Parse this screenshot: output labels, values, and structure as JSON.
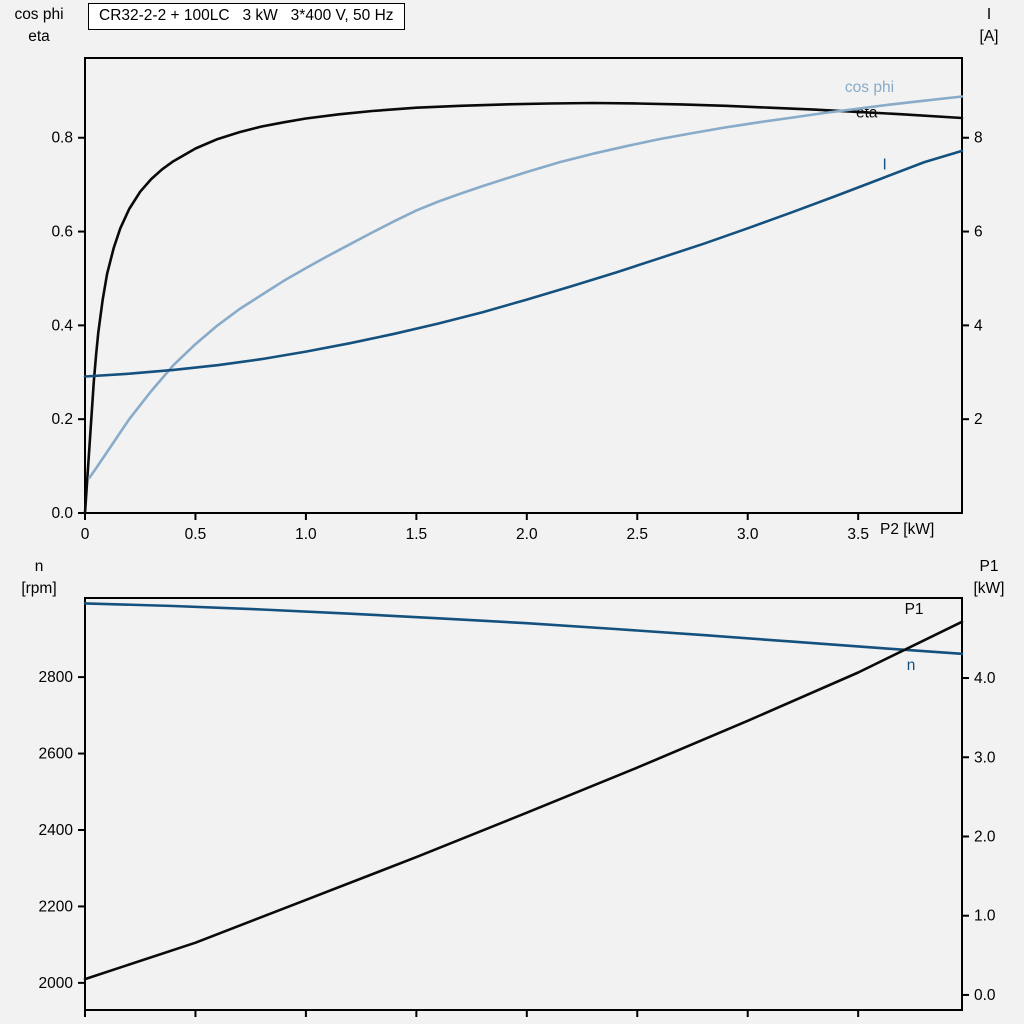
{
  "colors": {
    "black": "#0a0a0a",
    "dark_blue": "#15517e",
    "light_blue": "#88abc9",
    "frame": "#000000",
    "background": "#f2f2f2",
    "title_bg": "#ffffff"
  },
  "chart_data": [
    {
      "type": "line",
      "title": "CR32-2-2 + 100LC   3 kW   3*400 V, 50 Hz",
      "grid": false,
      "legend_position": "curve-labels-inside",
      "x_axis": {
        "label": "P2 [kW]",
        "range": [
          0,
          3.97
        ],
        "ticks": [
          0,
          0.5,
          1.0,
          1.5,
          2.0,
          2.5,
          3.0,
          3.5
        ],
        "tick_labels": [
          "0",
          "0.5",
          "1.0",
          "1.5",
          "2.0",
          "2.5",
          "3.0",
          "3.5"
        ]
      },
      "y_left": {
        "label_lines": [
          "cos phi",
          "eta"
        ],
        "range": [
          0,
          0.97
        ],
        "ticks": [
          0.0,
          0.2,
          0.4,
          0.6,
          0.8
        ],
        "tick_labels": [
          "0.0",
          "0.2",
          "0.4",
          "0.6",
          "0.8"
        ]
      },
      "y_right": {
        "label_lines": [
          "I",
          "[A]"
        ],
        "range": [
          0,
          9.7
        ],
        "ticks": [
          2,
          4,
          6,
          8
        ],
        "tick_labels": [
          "2",
          "4",
          "6",
          "8"
        ]
      },
      "series": [
        {
          "name": "eta",
          "axis": "left",
          "color": "#0a0a0a",
          "label": {
            "text": "eta",
            "x": 3.49,
            "y": 0.843
          },
          "points": [
            [
              0,
              0
            ],
            [
              0.01,
              0.07
            ],
            [
              0.02,
              0.14
            ],
            [
              0.03,
              0.21
            ],
            [
              0.04,
              0.28
            ],
            [
              0.05,
              0.335
            ],
            [
              0.06,
              0.385
            ],
            [
              0.08,
              0.455
            ],
            [
              0.1,
              0.51
            ],
            [
              0.13,
              0.565
            ],
            [
              0.16,
              0.607
            ],
            [
              0.2,
              0.648
            ],
            [
              0.25,
              0.685
            ],
            [
              0.3,
              0.712
            ],
            [
              0.35,
              0.733
            ],
            [
              0.4,
              0.75
            ],
            [
              0.5,
              0.777
            ],
            [
              0.6,
              0.797
            ],
            [
              0.7,
              0.812
            ],
            [
              0.8,
              0.824
            ],
            [
              0.9,
              0.833
            ],
            [
              1.0,
              0.841
            ],
            [
              1.15,
              0.85
            ],
            [
              1.3,
              0.857
            ],
            [
              1.5,
              0.864
            ],
            [
              1.7,
              0.868
            ],
            [
              1.9,
              0.871
            ],
            [
              2.1,
              0.873
            ],
            [
              2.3,
              0.874
            ],
            [
              2.5,
              0.873
            ],
            [
              2.7,
              0.871
            ],
            [
              2.9,
              0.868
            ],
            [
              3.1,
              0.864
            ],
            [
              3.3,
              0.86
            ],
            [
              3.5,
              0.855
            ],
            [
              3.7,
              0.85
            ],
            [
              3.97,
              0.842
            ]
          ]
        },
        {
          "name": "cos phi",
          "axis": "left",
          "color": "#88abc9",
          "label": {
            "text": "cos phi",
            "x": 3.44,
            "y": 0.897
          },
          "points": [
            [
              0.02,
              0.075
            ],
            [
              0.05,
              0.095
            ],
            [
              0.1,
              0.13
            ],
            [
              0.15,
              0.165
            ],
            [
              0.2,
              0.2
            ],
            [
              0.3,
              0.26
            ],
            [
              0.4,
              0.315
            ],
            [
              0.5,
              0.36
            ],
            [
              0.6,
              0.4
            ],
            [
              0.7,
              0.435
            ],
            [
              0.8,
              0.465
            ],
            [
              0.9,
              0.495
            ],
            [
              1.0,
              0.522
            ],
            [
              1.1,
              0.548
            ],
            [
              1.2,
              0.573
            ],
            [
              1.3,
              0.598
            ],
            [
              1.4,
              0.622
            ],
            [
              1.5,
              0.645
            ],
            [
              1.6,
              0.664
            ],
            [
              1.7,
              0.681
            ],
            [
              1.8,
              0.697
            ],
            [
              1.9,
              0.712
            ],
            [
              2.0,
              0.727
            ],
            [
              2.15,
              0.748
            ],
            [
              2.3,
              0.766
            ],
            [
              2.45,
              0.782
            ],
            [
              2.6,
              0.797
            ],
            [
              2.75,
              0.81
            ],
            [
              2.9,
              0.822
            ],
            [
              3.05,
              0.833
            ],
            [
              3.2,
              0.843
            ],
            [
              3.35,
              0.853
            ],
            [
              3.5,
              0.862
            ],
            [
              3.65,
              0.871
            ],
            [
              3.8,
              0.879
            ],
            [
              3.97,
              0.888
            ]
          ]
        },
        {
          "name": "I",
          "axis": "right",
          "color": "#15517e",
          "label": {
            "text": "I",
            "x": 3.61,
            "y": 7.32
          },
          "points": [
            [
              0,
              2.91
            ],
            [
              0.2,
              2.97
            ],
            [
              0.4,
              3.05
            ],
            [
              0.6,
              3.15
            ],
            [
              0.8,
              3.28
            ],
            [
              1.0,
              3.44
            ],
            [
              1.2,
              3.62
            ],
            [
              1.4,
              3.82
            ],
            [
              1.6,
              4.04
            ],
            [
              1.8,
              4.28
            ],
            [
              2.0,
              4.55
            ],
            [
              2.2,
              4.83
            ],
            [
              2.4,
              5.12
            ],
            [
              2.6,
              5.43
            ],
            [
              2.8,
              5.74
            ],
            [
              3.0,
              6.07
            ],
            [
              3.2,
              6.41
            ],
            [
              3.4,
              6.76
            ],
            [
              3.6,
              7.12
            ],
            [
              3.8,
              7.48
            ],
            [
              3.97,
              7.72
            ]
          ]
        }
      ]
    },
    {
      "type": "line",
      "title": "",
      "grid": false,
      "legend_position": "curve-labels-inside",
      "x_axis": {
        "label": "",
        "range": [
          0,
          3.97
        ],
        "ticks": [
          0,
          0.5,
          1.0,
          1.5,
          2.0,
          2.5,
          3.0,
          3.5
        ],
        "tick_labels": []
      },
      "y_left": {
        "label_lines": [
          "n",
          "[rpm]"
        ],
        "range": [
          1929,
          3007
        ],
        "ticks": [
          2000,
          2200,
          2400,
          2600,
          2800
        ],
        "tick_labels": [
          "2000",
          "2200",
          "2400",
          "2600",
          "2800"
        ]
      },
      "y_right": {
        "label_lines": [
          "P1",
          "[kW]"
        ],
        "range": [
          -0.19,
          5.01
        ],
        "ticks": [
          0,
          1,
          2,
          3,
          4
        ],
        "tick_labels": [
          "0.0",
          "1.0",
          "2.0",
          "3.0",
          "4.0"
        ]
      },
      "series": [
        {
          "name": "n",
          "axis": "left",
          "color": "#15517e",
          "label": {
            "text": "n",
            "x": 3.72,
            "y": 2819
          },
          "points": [
            [
              0,
              2993
            ],
            [
              0.4,
              2986
            ],
            [
              0.8,
              2977
            ],
            [
              1.2,
              2966
            ],
            [
              1.6,
              2954
            ],
            [
              2.0,
              2941
            ],
            [
              2.4,
              2926
            ],
            [
              2.8,
              2910
            ],
            [
              3.2,
              2893
            ],
            [
              3.6,
              2876
            ],
            [
              3.97,
              2861
            ]
          ]
        },
        {
          "name": "P1",
          "axis": "right",
          "color": "#0a0a0a",
          "label": {
            "text": "P1",
            "x": 3.71,
            "y": 4.81
          },
          "points": [
            [
              0,
              0.2
            ],
            [
              0.5,
              0.66
            ],
            [
              1.0,
              1.2
            ],
            [
              1.5,
              1.74
            ],
            [
              2.0,
              2.3
            ],
            [
              2.5,
              2.87
            ],
            [
              3.0,
              3.46
            ],
            [
              3.5,
              4.07
            ],
            [
              3.97,
              4.71
            ]
          ]
        }
      ]
    }
  ]
}
